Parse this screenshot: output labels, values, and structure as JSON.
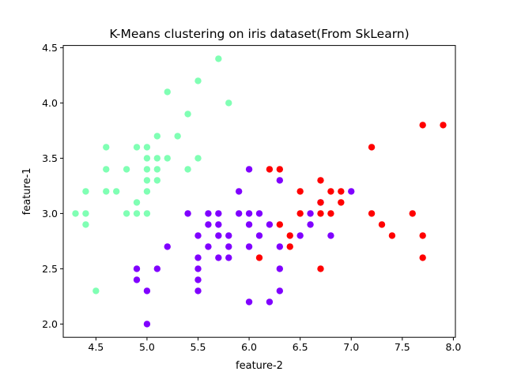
{
  "chart_data": {
    "type": "scatter",
    "title": "K-Means clustering on iris dataset(From SkLearn)",
    "xlabel": "feature-2",
    "ylabel": "feature-1",
    "xlim": [
      4.18,
      8.02
    ],
    "ylim": [
      1.88,
      4.52
    ],
    "xticks": [
      "4.5",
      "5.0",
      "5.5",
      "6.0",
      "6.5",
      "7.0",
      "7.5",
      "8.0"
    ],
    "yticks": [
      "2.0",
      "2.5",
      "3.0",
      "3.5",
      "4.0",
      "4.5"
    ],
    "grid": false,
    "legend": "none",
    "series": [
      {
        "color": "#80ffb4",
        "points": [
          [
            5.7,
            4.4
          ],
          [
            5.5,
            4.2
          ],
          [
            5.2,
            4.1
          ],
          [
            5.8,
            4.0
          ],
          [
            5.4,
            3.9
          ],
          [
            5.1,
            3.7
          ],
          [
            5.3,
            3.7
          ],
          [
            4.6,
            3.6
          ],
          [
            4.9,
            3.6
          ],
          [
            5.0,
            3.6
          ],
          [
            5.1,
            3.5
          ],
          [
            5.0,
            3.5
          ],
          [
            5.2,
            3.5
          ],
          [
            5.5,
            3.5
          ],
          [
            4.6,
            3.4
          ],
          [
            4.8,
            3.4
          ],
          [
            5.0,
            3.4
          ],
          [
            5.1,
            3.4
          ],
          [
            5.4,
            3.4
          ],
          [
            5.0,
            3.3
          ],
          [
            5.1,
            3.3
          ],
          [
            4.4,
            3.2
          ],
          [
            4.6,
            3.2
          ],
          [
            4.7,
            3.2
          ],
          [
            5.0,
            3.2
          ],
          [
            4.9,
            3.1
          ],
          [
            4.3,
            3.0
          ],
          [
            4.4,
            3.0
          ],
          [
            4.8,
            3.0
          ],
          [
            4.9,
            3.0
          ],
          [
            5.0,
            3.0
          ],
          [
            4.4,
            2.9
          ],
          [
            4.5,
            2.3
          ]
        ]
      },
      {
        "color": "#8000ff",
        "points": [
          [
            6.0,
            3.4
          ],
          [
            6.3,
            3.3
          ],
          [
            5.9,
            3.2
          ],
          [
            7.0,
            3.2
          ],
          [
            6.7,
            3.1
          ],
          [
            5.4,
            3.0
          ],
          [
            5.6,
            3.0
          ],
          [
            5.7,
            3.0
          ],
          [
            5.9,
            3.0
          ],
          [
            6.0,
            3.0
          ],
          [
            6.1,
            3.0
          ],
          [
            6.6,
            3.0
          ],
          [
            5.6,
            2.9
          ],
          [
            5.7,
            2.9
          ],
          [
            6.0,
            2.9
          ],
          [
            6.2,
            2.9
          ],
          [
            6.6,
            2.9
          ],
          [
            5.5,
            2.8
          ],
          [
            5.7,
            2.8
          ],
          [
            5.8,
            2.8
          ],
          [
            6.1,
            2.8
          ],
          [
            6.5,
            2.8
          ],
          [
            6.8,
            2.8
          ],
          [
            5.2,
            2.7
          ],
          [
            5.6,
            2.7
          ],
          [
            5.8,
            2.7
          ],
          [
            6.0,
            2.7
          ],
          [
            6.3,
            2.7
          ],
          [
            5.5,
            2.6
          ],
          [
            5.7,
            2.6
          ],
          [
            5.8,
            2.6
          ],
          [
            4.9,
            2.5
          ],
          [
            5.1,
            2.5
          ],
          [
            5.5,
            2.5
          ],
          [
            6.3,
            2.5
          ],
          [
            4.9,
            2.4
          ],
          [
            5.5,
            2.4
          ],
          [
            5.0,
            2.3
          ],
          [
            5.5,
            2.3
          ],
          [
            6.3,
            2.3
          ],
          [
            6.0,
            2.2
          ],
          [
            6.2,
            2.2
          ],
          [
            5.0,
            2.0
          ]
        ]
      },
      {
        "color": "#ff0000",
        "points": [
          [
            7.7,
            3.8
          ],
          [
            7.9,
            3.8
          ],
          [
            7.2,
            3.6
          ],
          [
            6.2,
            3.4
          ],
          [
            6.3,
            3.4
          ],
          [
            6.7,
            3.3
          ],
          [
            6.5,
            3.2
          ],
          [
            6.8,
            3.2
          ],
          [
            6.9,
            3.2
          ],
          [
            6.7,
            3.1
          ],
          [
            6.9,
            3.1
          ],
          [
            6.5,
            3.0
          ],
          [
            6.7,
            3.0
          ],
          [
            6.8,
            3.0
          ],
          [
            7.2,
            3.0
          ],
          [
            7.6,
            3.0
          ],
          [
            6.3,
            2.9
          ],
          [
            7.3,
            2.9
          ],
          [
            6.4,
            2.8
          ],
          [
            7.4,
            2.8
          ],
          [
            7.7,
            2.8
          ],
          [
            6.4,
            2.7
          ],
          [
            6.1,
            2.6
          ],
          [
            7.7,
            2.6
          ],
          [
            6.7,
            2.5
          ]
        ]
      }
    ]
  }
}
